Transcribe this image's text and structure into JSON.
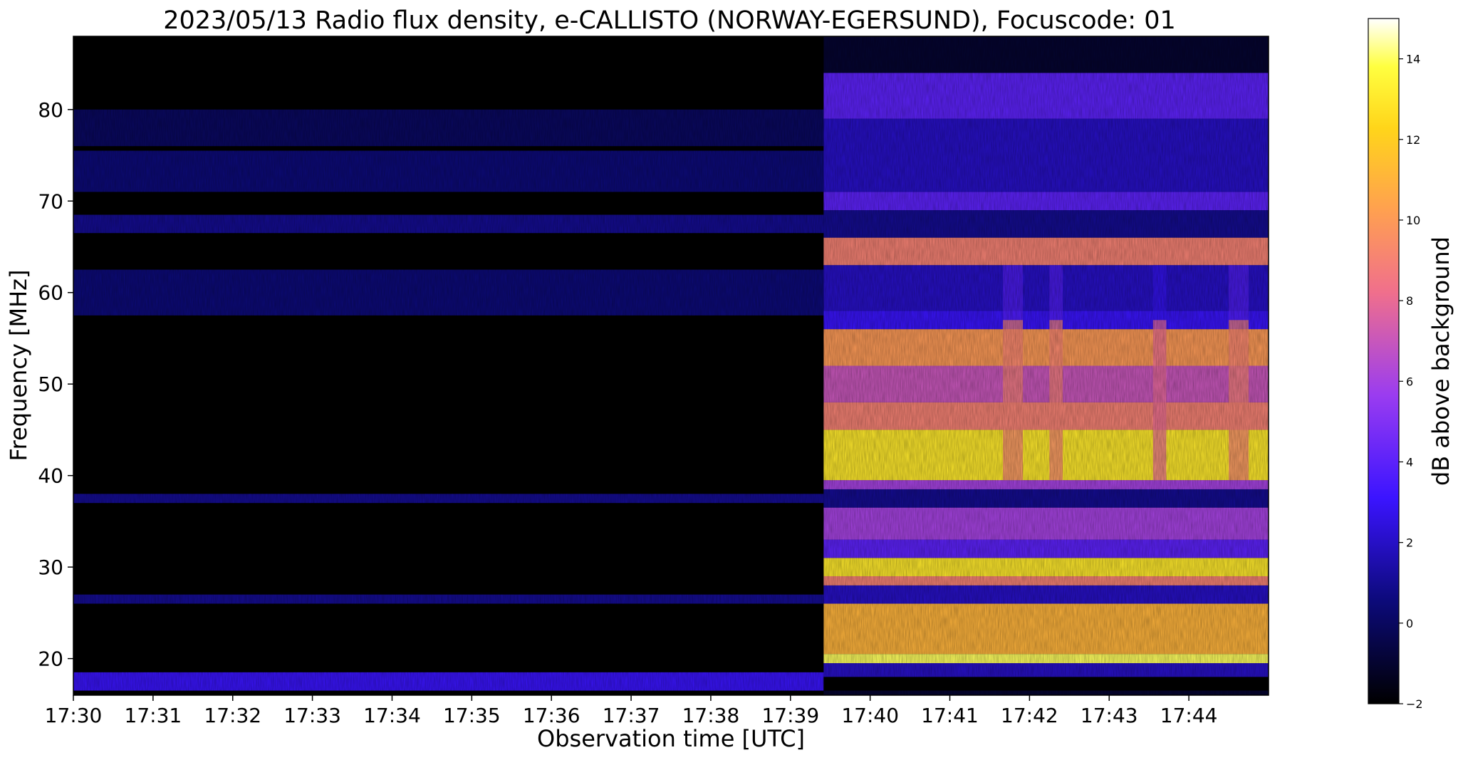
{
  "chart_data": {
    "type": "heatmap",
    "title": "2023/05/13  Radio flux density, e-CALLISTO (NORWAY-EGERSUND), Focuscode: 01",
    "xlabel": "Observation time [UTC]",
    "ylabel": "Frequency [MHz]",
    "colorbar_label": "dB above background",
    "colormap": "gnuplot2",
    "x_ticks": [
      "17:30",
      "17:31",
      "17:32",
      "17:33",
      "17:34",
      "17:35",
      "17:36",
      "17:37",
      "17:38",
      "17:39",
      "17:40",
      "17:41",
      "17:42",
      "17:43",
      "17:44"
    ],
    "x_range": [
      "17:30:00",
      "17:45:00"
    ],
    "y_ticks": [
      20,
      30,
      40,
      50,
      60,
      70,
      80
    ],
    "ylim": [
      16,
      88
    ],
    "colorbar_ticks": [
      -2,
      0,
      2,
      4,
      6,
      8,
      10,
      12,
      14
    ],
    "clim": [
      -2,
      15
    ],
    "transition_time": "17:39:25",
    "segments": [
      {
        "time_range": [
          "17:30:00",
          "17:39:25"
        ],
        "background_db": -2,
        "bands": [
          {
            "f_range": [
              16.5,
              18.5
            ],
            "db": 3
          },
          {
            "f_range": [
              26,
              27
            ],
            "db": 1
          },
          {
            "f_range": [
              37,
              38
            ],
            "db": 1
          },
          {
            "f_range": [
              57.5,
              62.5
            ],
            "db": 0.5
          },
          {
            "f_range": [
              66.5,
              68.5
            ],
            "db": 1
          },
          {
            "f_range": [
              71,
              75.5
            ],
            "db": 0.5
          },
          {
            "f_range": [
              76,
              80
            ],
            "db": 0
          }
        ]
      },
      {
        "time_range": [
          "17:39:25",
          "17:45:00"
        ],
        "background_db": -1,
        "bands": [
          {
            "f_range": [
              16.5,
              18
            ],
            "db": -2
          },
          {
            "f_range": [
              18,
              19.5
            ],
            "db": 2
          },
          {
            "f_range": [
              19.5,
              20.5
            ],
            "db": 14
          },
          {
            "f_range": [
              20.5,
              26
            ],
            "db": 11
          },
          {
            "f_range": [
              26,
              28
            ],
            "db": 2
          },
          {
            "f_range": [
              28,
              29
            ],
            "db": 9
          },
          {
            "f_range": [
              29,
              31
            ],
            "db": 13
          },
          {
            "f_range": [
              31,
              33
            ],
            "db": 4
          },
          {
            "f_range": [
              33,
              36.5
            ],
            "db": 6
          },
          {
            "f_range": [
              36.5,
              38.5
            ],
            "db": 1
          },
          {
            "f_range": [
              38.5,
              39.5
            ],
            "db": 6
          },
          {
            "f_range": [
              39.5,
              45
            ],
            "db": 13
          },
          {
            "f_range": [
              45,
              48
            ],
            "db": 9
          },
          {
            "f_range": [
              48,
              52
            ],
            "db": 7
          },
          {
            "f_range": [
              52,
              56
            ],
            "db": 10
          },
          {
            "f_range": [
              56,
              58
            ],
            "db": 3
          },
          {
            "f_range": [
              58,
              63
            ],
            "db": 2
          },
          {
            "f_range": [
              63,
              66
            ],
            "db": 9
          },
          {
            "f_range": [
              66,
              69
            ],
            "db": 1
          },
          {
            "f_range": [
              69,
              71
            ],
            "db": 4
          },
          {
            "f_range": [
              71,
              79
            ],
            "db": 2
          },
          {
            "f_range": [
              79,
              84
            ],
            "db": 4
          }
        ]
      }
    ],
    "bright_vertical_lines": [
      {
        "time_range": [
          "17:41:40",
          "17:41:55"
        ],
        "db": 9
      },
      {
        "time_range": [
          "17:42:15",
          "17:42:25"
        ],
        "db": 9
      },
      {
        "time_range": [
          "17:43:33",
          "17:43:43"
        ],
        "db": 8
      },
      {
        "time_range": [
          "17:44:30",
          "17:44:45"
        ],
        "db": 9
      }
    ]
  }
}
